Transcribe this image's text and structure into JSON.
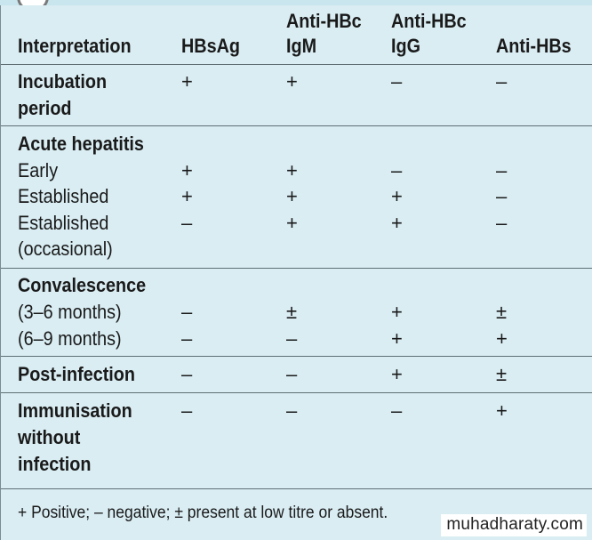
{
  "table": {
    "headers": {
      "interpretation": "Interpretation",
      "hbsag": "HBsAg",
      "anti_hbc_igm_1": "Anti-HBc",
      "anti_hbc_igm_2": "IgM",
      "anti_hbc_igg_1": "Anti-HBc",
      "anti_hbc_igg_2": "IgG",
      "anti_hbs": "Anti-HBs"
    },
    "incubation": {
      "label_1": "Incubation",
      "label_2": "period",
      "values": [
        "+",
        "+",
        "–",
        "–"
      ]
    },
    "acute": {
      "title": "Acute hepatitis",
      "early": {
        "label": "Early",
        "values": [
          "+",
          "+",
          "–",
          "–"
        ]
      },
      "established": {
        "label": "Established",
        "values": [
          "+",
          "+",
          "+",
          "–"
        ]
      },
      "established_occ": {
        "label_1": "Established",
        "label_2": "(occasional)",
        "values": [
          "–",
          "+",
          "+",
          "–"
        ]
      }
    },
    "convalescence": {
      "title": "Convalescence",
      "r1": {
        "label": "(3–6 months)",
        "values": [
          "–",
          "±",
          "+",
          "±"
        ]
      },
      "r2": {
        "label": "(6–9 months)",
        "values": [
          "–",
          "–",
          "+",
          "+"
        ]
      }
    },
    "post_infection": {
      "label": "Post-infection",
      "values": [
        "–",
        "–",
        "+",
        "±"
      ]
    },
    "immunisation": {
      "label_1": "Immunisation",
      "label_2": "without",
      "label_3": "infection",
      "values": [
        "–",
        "–",
        "–",
        "+"
      ]
    },
    "footnote": "+ Positive; – negative; ± present at low titre or absent."
  },
  "watermark": "muhadharaty.com",
  "colors": {
    "background": "#d9edf3",
    "rule": "#5f6f74",
    "top_bar": "#c9e5ee"
  }
}
